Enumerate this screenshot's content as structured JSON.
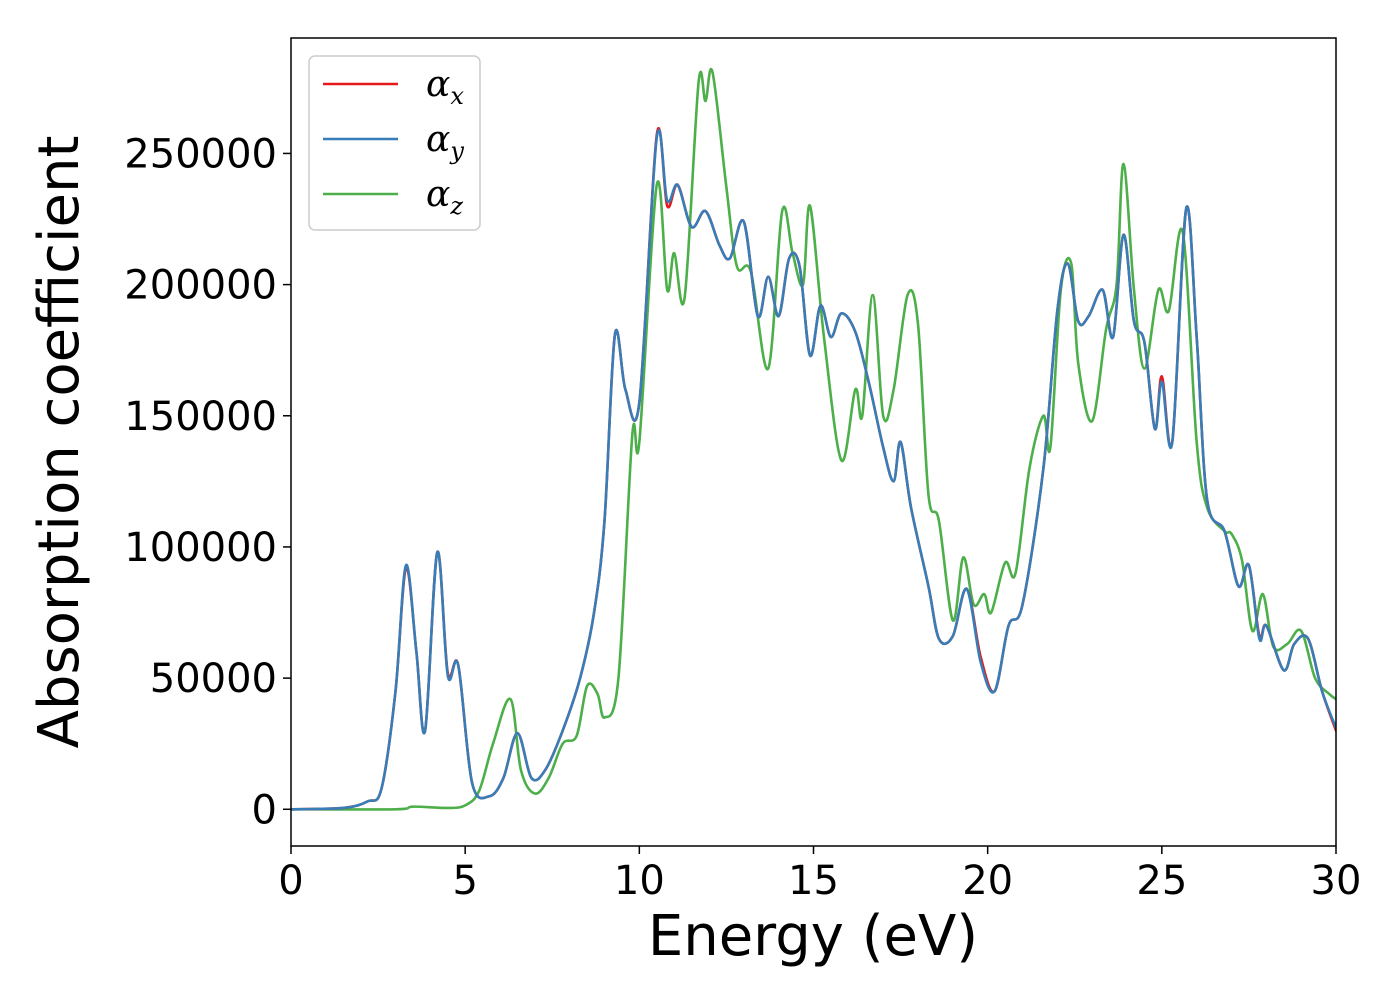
{
  "chart_data": {
    "type": "line",
    "title": "",
    "xlabel": "Energy (eV)",
    "ylabel": "Absorption coefficient",
    "xlim": [
      0,
      30
    ],
    "ylim": [
      -14000,
      294000
    ],
    "xticks": [
      0,
      5,
      10,
      15,
      20,
      25,
      30
    ],
    "yticks": [
      0,
      50000,
      100000,
      150000,
      200000,
      250000
    ],
    "grid": false,
    "legend_position": "top-left",
    "series": [
      {
        "name": "α",
        "subscript": "x",
        "color": "#e41a1c",
        "points": [
          [
            0,
            0
          ],
          [
            1.5,
            500
          ],
          [
            2.2,
            3000
          ],
          [
            2.6,
            8000
          ],
          [
            3.0,
            45000
          ],
          [
            3.3,
            92000
          ],
          [
            3.6,
            60000
          ],
          [
            3.85,
            30000
          ],
          [
            4.2,
            98000
          ],
          [
            4.5,
            52000
          ],
          [
            4.8,
            55000
          ],
          [
            5.2,
            10000
          ],
          [
            5.7,
            5000
          ],
          [
            6.1,
            12000
          ],
          [
            6.5,
            29000
          ],
          [
            6.9,
            12000
          ],
          [
            7.3,
            15000
          ],
          [
            7.8,
            30000
          ],
          [
            8.3,
            50000
          ],
          [
            8.7,
            75000
          ],
          [
            9.0,
            110000
          ],
          [
            9.3,
            181000
          ],
          [
            9.6,
            160000
          ],
          [
            10.0,
            155000
          ],
          [
            10.5,
            257000
          ],
          [
            10.8,
            230000
          ],
          [
            11.1,
            238000
          ],
          [
            11.5,
            222000
          ],
          [
            11.9,
            228000
          ],
          [
            12.3,
            215000
          ],
          [
            12.6,
            210000
          ],
          [
            13.0,
            224000
          ],
          [
            13.4,
            188000
          ],
          [
            13.7,
            203000
          ],
          [
            14.0,
            188000
          ],
          [
            14.3,
            210000
          ],
          [
            14.6,
            207000
          ],
          [
            14.9,
            173000
          ],
          [
            15.2,
            192000
          ],
          [
            15.5,
            180000
          ],
          [
            15.8,
            189000
          ],
          [
            16.2,
            182000
          ],
          [
            16.6,
            162000
          ],
          [
            17.0,
            138000
          ],
          [
            17.3,
            125000
          ],
          [
            17.5,
            140000
          ],
          [
            17.8,
            115000
          ],
          [
            18.3,
            85000
          ],
          [
            18.6,
            65000
          ],
          [
            19.0,
            66000
          ],
          [
            19.4,
            84000
          ],
          [
            19.8,
            58000
          ],
          [
            20.2,
            45000
          ],
          [
            20.6,
            70000
          ],
          [
            21.0,
            78000
          ],
          [
            21.6,
            130000
          ],
          [
            22.0,
            190000
          ],
          [
            22.3,
            208000
          ],
          [
            22.6,
            186000
          ],
          [
            22.9,
            188000
          ],
          [
            23.3,
            198000
          ],
          [
            23.6,
            180000
          ],
          [
            23.9,
            219000
          ],
          [
            24.2,
            186000
          ],
          [
            24.5,
            178000
          ],
          [
            24.8,
            145000
          ],
          [
            25.0,
            165000
          ],
          [
            25.3,
            140000
          ],
          [
            25.7,
            229000
          ],
          [
            26.0,
            180000
          ],
          [
            26.3,
            118000
          ],
          [
            26.8,
            106000
          ],
          [
            27.2,
            85000
          ],
          [
            27.5,
            93000
          ],
          [
            27.8,
            66000
          ],
          [
            28.0,
            70000
          ],
          [
            28.5,
            53000
          ],
          [
            28.8,
            63000
          ],
          [
            29.2,
            65000
          ],
          [
            29.6,
            45000
          ],
          [
            30,
            30000
          ]
        ]
      },
      {
        "name": "α",
        "subscript": "y",
        "color": "#377eb8",
        "points": [
          [
            0,
            0
          ],
          [
            1.5,
            500
          ],
          [
            2.2,
            3000
          ],
          [
            2.6,
            8000
          ],
          [
            3.0,
            45000
          ],
          [
            3.3,
            93000
          ],
          [
            3.6,
            60000
          ],
          [
            3.85,
            30000
          ],
          [
            4.2,
            98000
          ],
          [
            4.5,
            51000
          ],
          [
            4.8,
            55000
          ],
          [
            5.2,
            10000
          ],
          [
            5.7,
            5000
          ],
          [
            6.1,
            12000
          ],
          [
            6.5,
            29000
          ],
          [
            6.9,
            12000
          ],
          [
            7.3,
            15000
          ],
          [
            7.8,
            30000
          ],
          [
            8.3,
            50000
          ],
          [
            8.7,
            75000
          ],
          [
            9.0,
            110000
          ],
          [
            9.3,
            181000
          ],
          [
            9.6,
            160000
          ],
          [
            10.0,
            155000
          ],
          [
            10.5,
            256000
          ],
          [
            10.8,
            232000
          ],
          [
            11.1,
            238000
          ],
          [
            11.5,
            222000
          ],
          [
            11.9,
            228000
          ],
          [
            12.3,
            215000
          ],
          [
            12.6,
            210000
          ],
          [
            13.0,
            224000
          ],
          [
            13.4,
            188000
          ],
          [
            13.7,
            203000
          ],
          [
            14.0,
            188000
          ],
          [
            14.3,
            210000
          ],
          [
            14.6,
            207000
          ],
          [
            14.9,
            173000
          ],
          [
            15.2,
            192000
          ],
          [
            15.5,
            180000
          ],
          [
            15.8,
            189000
          ],
          [
            16.2,
            182000
          ],
          [
            16.6,
            162000
          ],
          [
            17.0,
            138000
          ],
          [
            17.3,
            125000
          ],
          [
            17.5,
            140000
          ],
          [
            17.8,
            115000
          ],
          [
            18.3,
            85000
          ],
          [
            18.6,
            65000
          ],
          [
            19.0,
            66000
          ],
          [
            19.4,
            84000
          ],
          [
            19.8,
            56000
          ],
          [
            20.2,
            45000
          ],
          [
            20.6,
            70000
          ],
          [
            21.0,
            78000
          ],
          [
            21.6,
            130000
          ],
          [
            22.0,
            190000
          ],
          [
            22.3,
            208000
          ],
          [
            22.6,
            186000
          ],
          [
            22.9,
            188000
          ],
          [
            23.3,
            198000
          ],
          [
            23.6,
            180000
          ],
          [
            23.9,
            219000
          ],
          [
            24.2,
            186000
          ],
          [
            24.5,
            178000
          ],
          [
            24.8,
            145000
          ],
          [
            25.0,
            163000
          ],
          [
            25.3,
            140000
          ],
          [
            25.7,
            229000
          ],
          [
            26.0,
            180000
          ],
          [
            26.3,
            118000
          ],
          [
            26.8,
            106000
          ],
          [
            27.2,
            85000
          ],
          [
            27.5,
            93000
          ],
          [
            27.8,
            65000
          ],
          [
            28.0,
            70000
          ],
          [
            28.5,
            53000
          ],
          [
            28.8,
            63000
          ],
          [
            29.2,
            65000
          ],
          [
            29.6,
            45000
          ],
          [
            30,
            31000
          ]
        ]
      },
      {
        "name": "α",
        "subscript": "z",
        "color": "#4daf4a",
        "points": [
          [
            0,
            0
          ],
          [
            3,
            0
          ],
          [
            3.5,
            1000
          ],
          [
            4.5,
            500
          ],
          [
            5.0,
            1500
          ],
          [
            5.4,
            7000
          ],
          [
            5.8,
            25000
          ],
          [
            6.3,
            42000
          ],
          [
            6.6,
            15000
          ],
          [
            7.0,
            6000
          ],
          [
            7.4,
            12000
          ],
          [
            7.8,
            25000
          ],
          [
            8.2,
            28000
          ],
          [
            8.5,
            47000
          ],
          [
            8.8,
            44000
          ],
          [
            9.0,
            35000
          ],
          [
            9.4,
            50000
          ],
          [
            9.8,
            143000
          ],
          [
            10.0,
            140000
          ],
          [
            10.5,
            238000
          ],
          [
            10.8,
            198000
          ],
          [
            11.0,
            212000
          ],
          [
            11.3,
            195000
          ],
          [
            11.7,
            277000
          ],
          [
            11.9,
            270000
          ],
          [
            12.1,
            281000
          ],
          [
            12.5,
            237000
          ],
          [
            12.8,
            207000
          ],
          [
            13.2,
            205000
          ],
          [
            13.7,
            168000
          ],
          [
            14.1,
            228000
          ],
          [
            14.4,
            212000
          ],
          [
            14.7,
            200000
          ],
          [
            14.9,
            230000
          ],
          [
            15.3,
            180000
          ],
          [
            15.8,
            133000
          ],
          [
            16.2,
            160000
          ],
          [
            16.4,
            150000
          ],
          [
            16.7,
            196000
          ],
          [
            17.0,
            150000
          ],
          [
            17.3,
            160000
          ],
          [
            17.7,
            196000
          ],
          [
            18.0,
            185000
          ],
          [
            18.3,
            120000
          ],
          [
            18.6,
            110000
          ],
          [
            19.0,
            72000
          ],
          [
            19.3,
            96000
          ],
          [
            19.6,
            78000
          ],
          [
            19.9,
            82000
          ],
          [
            20.1,
            75000
          ],
          [
            20.5,
            94000
          ],
          [
            20.8,
            90000
          ],
          [
            21.2,
            130000
          ],
          [
            21.6,
            150000
          ],
          [
            21.8,
            138000
          ],
          [
            22.1,
            198000
          ],
          [
            22.4,
            208000
          ],
          [
            22.6,
            170000
          ],
          [
            23.0,
            148000
          ],
          [
            23.4,
            183000
          ],
          [
            23.7,
            200000
          ],
          [
            23.9,
            246000
          ],
          [
            24.2,
            198000
          ],
          [
            24.5,
            168000
          ],
          [
            24.9,
            198000
          ],
          [
            25.2,
            190000
          ],
          [
            25.6,
            220000
          ],
          [
            26.0,
            140000
          ],
          [
            26.3,
            115000
          ],
          [
            26.8,
            106000
          ],
          [
            27.0,
            105000
          ],
          [
            27.3,
            95000
          ],
          [
            27.6,
            68000
          ],
          [
            27.9,
            82000
          ],
          [
            28.2,
            62000
          ],
          [
            28.6,
            63000
          ],
          [
            29.0,
            68000
          ],
          [
            29.4,
            50000
          ],
          [
            29.8,
            44000
          ],
          [
            30,
            42000
          ]
        ]
      }
    ]
  }
}
